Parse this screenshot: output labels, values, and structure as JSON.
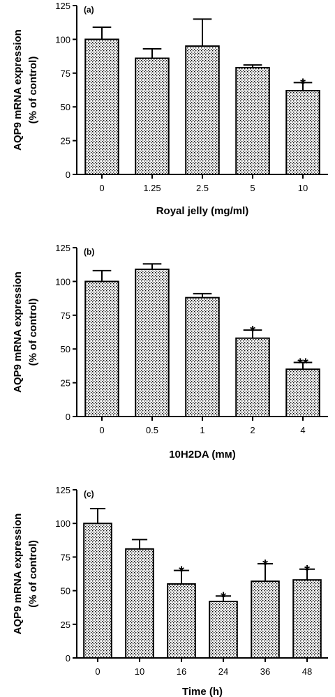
{
  "chart_data": [
    {
      "type": "bar",
      "panel_label": "(a)",
      "ylabel_lines": [
        "AQP9 mRNA expression",
        "(% of control)"
      ],
      "xlabel": "Royal jelly (mg/ml)",
      "categories": [
        "0",
        "1.25",
        "2.5",
        "5",
        "10"
      ],
      "values": [
        100,
        86,
        95,
        79,
        62
      ],
      "errors": [
        9,
        7,
        20,
        2,
        6
      ],
      "annotations": [
        "",
        "",
        "",
        "",
        "*"
      ],
      "ylim": [
        0,
        125
      ],
      "yticks": [
        0,
        25,
        50,
        75,
        100,
        125
      ],
      "bar_pattern": "dotted",
      "grid": false
    },
    {
      "type": "bar",
      "panel_label": "(b)",
      "ylabel_lines": [
        "AQP9 mRNA expression",
        "(% of control)"
      ],
      "xlabel": "10H2DA (mм)",
      "categories": [
        "0",
        "0.5",
        "1",
        "2",
        "4"
      ],
      "values": [
        100,
        109,
        88,
        58,
        35
      ],
      "errors": [
        8,
        4,
        3,
        6,
        5
      ],
      "annotations": [
        "",
        "",
        "",
        "*",
        "**"
      ],
      "ylim": [
        0,
        125
      ],
      "yticks": [
        0,
        25,
        50,
        75,
        100,
        125
      ],
      "bar_pattern": "dotted",
      "grid": false
    },
    {
      "type": "bar",
      "panel_label": "(c)",
      "ylabel_lines": [
        "AQP9 mRNA expression",
        "(% of control)"
      ],
      "xlabel": "Time (h)",
      "categories": [
        "0",
        "10",
        "16",
        "24",
        "36",
        "48"
      ],
      "values": [
        100,
        81,
        55,
        42,
        57,
        58
      ],
      "errors": [
        11,
        7,
        10,
        4,
        13,
        8
      ],
      "annotations": [
        "",
        "",
        "*",
        "*",
        "*",
        "*"
      ],
      "ylim": [
        0,
        125
      ],
      "yticks": [
        0,
        25,
        50,
        75,
        100,
        125
      ],
      "bar_pattern": "dotted",
      "grid": false
    }
  ]
}
